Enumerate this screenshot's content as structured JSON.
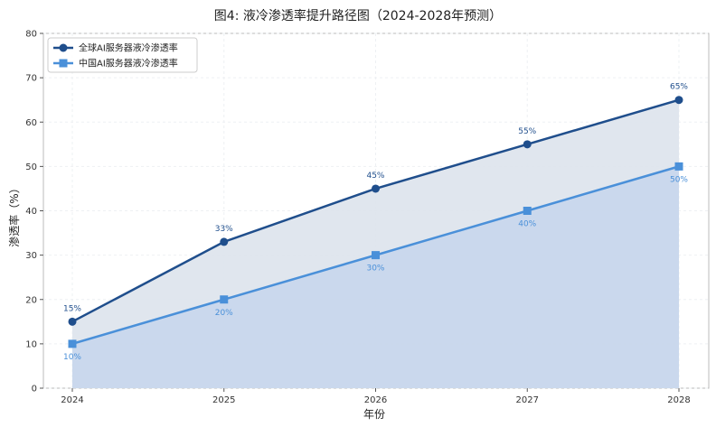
{
  "chart_data": {
    "type": "line",
    "title": "图4: 液冷渗透率提升路径图（2024-2028年预测）",
    "xlabel": "年份",
    "ylabel": "渗透率（%）",
    "categories": [
      "2024",
      "2025",
      "2026",
      "2027",
      "2028"
    ],
    "ylim": [
      0,
      80
    ],
    "yticks": [
      "0",
      "10",
      "20",
      "30",
      "40",
      "50",
      "60",
      "70",
      "80"
    ],
    "grid": true,
    "legend_position": "top-left",
    "series": [
      {
        "name": "全球AI服务器液冷渗透率",
        "values": [
          15,
          33,
          45,
          55,
          65
        ],
        "labels": [
          "15%",
          "33%",
          "45%",
          "55%",
          "65%"
        ],
        "color": "#1f4e8c",
        "fill": "#dde3ec",
        "marker": "circle"
      },
      {
        "name": "中国AI服务器液冷渗透率",
        "values": [
          10,
          20,
          30,
          40,
          50
        ],
        "labels": [
          "10%",
          "20%",
          "30%",
          "40%",
          "50%"
        ],
        "color": "#4a90d9",
        "fill": "#c8d7ec",
        "marker": "square"
      }
    ]
  }
}
